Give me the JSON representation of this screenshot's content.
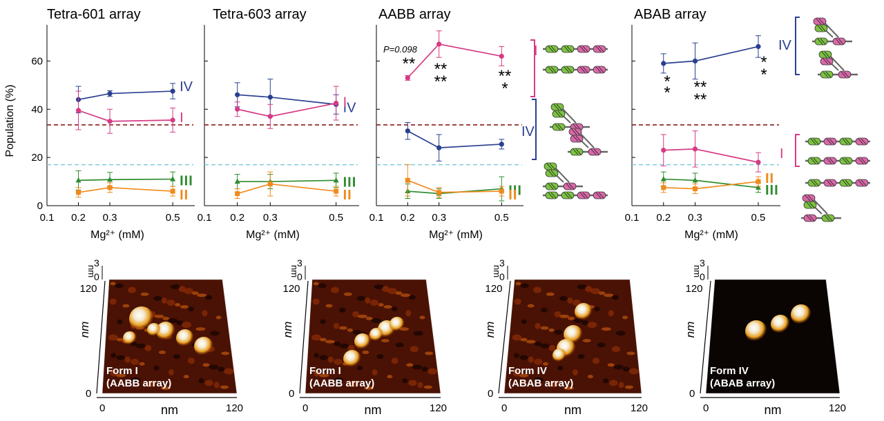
{
  "chart_data": [
    {
      "type": "line",
      "title": "Tetra-601 array",
      "xlabel": "Mg²⁺ (mM)",
      "ylabel": "Population (%)",
      "xlim": [
        0.1,
        0.57
      ],
      "ylim": [
        0,
        75
      ],
      "xticks": [
        "0.1",
        "0.2",
        "0.3",
        "0.5"
      ],
      "yticks": [
        "0",
        "20",
        "40",
        "60"
      ],
      "x": [
        0.2,
        0.3,
        0.5
      ],
      "reference_lines": [
        {
          "y": 33.5,
          "color": "#8b1a1a"
        },
        {
          "y": 17,
          "color": "#7fcbd8"
        }
      ],
      "series": [
        {
          "name": "IV",
          "color": "#2a3f8f",
          "marker": "circle",
          "values": [
            44,
            46.5,
            47.5
          ],
          "errors": [
            5.5,
            1.2,
            3.2
          ]
        },
        {
          "name": "I",
          "color": "#d63a84",
          "marker": "circle",
          "values": [
            39.5,
            35,
            35.5
          ],
          "errors": [
            8,
            5,
            5
          ]
        },
        {
          "name": "III",
          "color": "#2e8b2e",
          "marker": "triangle",
          "values": [
            10.5,
            10.8,
            11
          ],
          "errors": [
            4,
            3,
            3
          ]
        },
        {
          "name": "II",
          "color": "#f08a1c",
          "marker": "square",
          "values": [
            5.5,
            7.5,
            6
          ],
          "errors": [
            2,
            2,
            2
          ]
        }
      ],
      "annotations": []
    },
    {
      "type": "line",
      "title": "Tetra-603 array",
      "xlabel": "Mg²⁺ (mM)",
      "ylabel": "",
      "xlim": [
        0.1,
        0.57
      ],
      "ylim": [
        0,
        75
      ],
      "xticks": [
        "0.1",
        "0.2",
        "0.3",
        "0.5"
      ],
      "yticks": [],
      "x": [
        0.2,
        0.3,
        0.5
      ],
      "reference_lines": [
        {
          "y": 33.5,
          "color": "#8b1a1a"
        },
        {
          "y": 17,
          "color": "#7fcbd8"
        }
      ],
      "series": [
        {
          "name": "IV",
          "color": "#2a3f8f",
          "marker": "circle",
          "values": [
            46,
            45,
            42
          ],
          "errors": [
            5,
            7.5,
            4
          ]
        },
        {
          "name": "I",
          "color": "#d63a84",
          "marker": "circle",
          "values": [
            40,
            37,
            42.5
          ],
          "errors": [
            3,
            5,
            7
          ]
        },
        {
          "name": "III",
          "color": "#2e8b2e",
          "marker": "triangle",
          "values": [
            10,
            10,
            10.5
          ],
          "errors": [
            3,
            3,
            3
          ]
        },
        {
          "name": "II",
          "color": "#f08a1c",
          "marker": "square",
          "values": [
            5,
            9,
            6
          ],
          "errors": [
            2,
            5,
            2
          ]
        }
      ],
      "annotations": []
    },
    {
      "type": "line",
      "title": "AABB array",
      "xlabel": "Mg²⁺ (mM)",
      "ylabel": "",
      "xlim": [
        0.1,
        0.57
      ],
      "ylim": [
        0,
        75
      ],
      "xticks": [
        "0.1",
        "0.2",
        "0.3",
        "0.5"
      ],
      "yticks": [],
      "x": [
        0.2,
        0.3,
        0.5
      ],
      "reference_lines": [
        {
          "y": 33.5,
          "color": "#8b1a1a"
        },
        {
          "y": 17,
          "color": "#7fcbd8"
        }
      ],
      "series": [
        {
          "name": "I",
          "color": "#d63a84",
          "marker": "circle",
          "values": [
            53,
            67,
            62
          ],
          "errors": [
            1,
            5.5,
            4
          ]
        },
        {
          "name": "IV",
          "color": "#2a3f8f",
          "marker": "circle",
          "values": [
            31,
            24,
            25.5
          ],
          "errors": [
            3.5,
            5.5,
            2
          ]
        },
        {
          "name": "III",
          "color": "#2e8b2e",
          "marker": "triangle",
          "values": [
            6,
            5,
            7
          ],
          "errors": [
            3,
            2,
            5
          ]
        },
        {
          "name": "II",
          "color": "#f08a1c",
          "marker": "square",
          "values": [
            10.5,
            5.5,
            6
          ],
          "errors": [
            6.5,
            2,
            2
          ]
        }
      ],
      "annotations": [
        "P=0.098",
        "**",
        "**",
        "**",
        "**",
        "*"
      ]
    },
    {
      "type": "line",
      "title": "ABAB array",
      "xlabel": "Mg²⁺ (mM)",
      "ylabel": "",
      "xlim": [
        0.1,
        0.57
      ],
      "ylim": [
        0,
        75
      ],
      "xticks": [
        "0.1",
        "0.2",
        "0.3",
        "0.5"
      ],
      "yticks": [],
      "x": [
        0.2,
        0.3,
        0.5
      ],
      "reference_lines": [
        {
          "y": 33.5,
          "color": "#8b1a1a"
        },
        {
          "y": 17,
          "color": "#7fcbd8"
        }
      ],
      "series": [
        {
          "name": "IV",
          "color": "#2a3f8f",
          "marker": "circle",
          "values": [
            59,
            60,
            66
          ],
          "errors": [
            4,
            7.5,
            4.5
          ]
        },
        {
          "name": "I",
          "color": "#d63a84",
          "marker": "circle",
          "values": [
            23,
            23.5,
            18
          ],
          "errors": [
            6.5,
            7.5,
            4
          ]
        },
        {
          "name": "III",
          "color": "#2e8b2e",
          "marker": "triangle",
          "values": [
            11,
            10.5,
            7.5
          ],
          "errors": [
            3,
            3,
            2
          ]
        },
        {
          "name": "II",
          "color": "#f08a1c",
          "marker": "square",
          "values": [
            7.5,
            7,
            10
          ],
          "errors": [
            2,
            2,
            2
          ]
        }
      ],
      "annotations": [
        "*",
        "*",
        "**",
        "**",
        "*",
        "*"
      ]
    }
  ],
  "afm_panels": [
    {
      "label1": "Form I",
      "label2": "(AABB array)",
      "x_label": "nm",
      "y_label": "nm",
      "z_label": "nm",
      "x_ticks": [
        "0",
        "120"
      ],
      "y_ticks": [
        "0",
        "120"
      ],
      "z_ticks": [
        "0",
        "3"
      ]
    },
    {
      "label1": "Form I",
      "label2": "(AABB array)",
      "x_label": "nm",
      "y_label": "nm",
      "z_label": "nm",
      "x_ticks": [
        "0",
        "120"
      ],
      "y_ticks": [
        "0",
        "120"
      ],
      "z_ticks": [
        "0",
        "3"
      ]
    },
    {
      "label1": "Form IV",
      "label2": "(ABAB array)",
      "x_label": "nm",
      "y_label": "nm",
      "z_label": "nm",
      "x_ticks": [
        "0",
        "120"
      ],
      "y_ticks": [
        "0",
        "120"
      ],
      "z_ticks": [
        "0",
        "3"
      ]
    },
    {
      "label1": "Form IV",
      "label2": "(ABAB array)",
      "x_label": "nm",
      "y_label": "nm",
      "z_label": "nm",
      "x_ticks": [
        "0",
        "120"
      ],
      "y_ticks": [
        "0",
        "120"
      ],
      "z_ticks": [
        "0",
        "3"
      ]
    }
  ],
  "colors": {
    "form_IV": "#2a3f8f",
    "form_I": "#d63a84",
    "form_III": "#2e8b2e",
    "form_II": "#f08a1c",
    "nucleosome_green": "#7cc242",
    "nucleosome_pink": "#d968a8"
  }
}
